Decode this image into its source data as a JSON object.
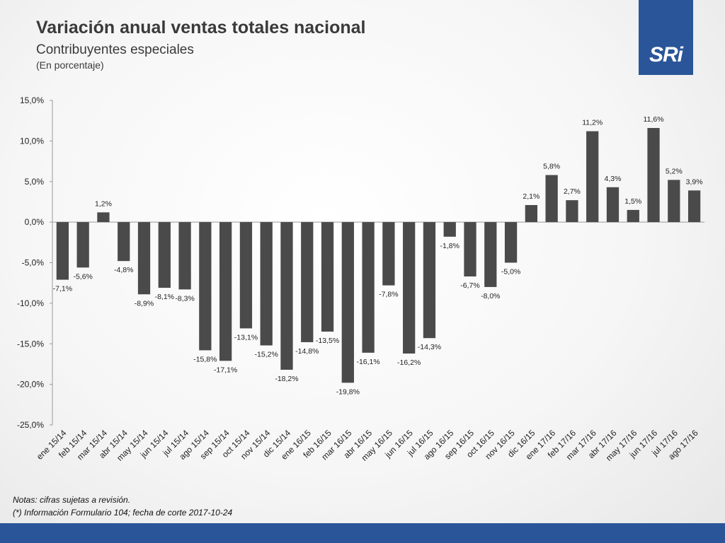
{
  "header": {
    "title": "Variación anual ventas totales nacional",
    "subtitle": "Contribuyentes especiales",
    "unit": "(En porcentaje)"
  },
  "logo": {
    "text": "SRi",
    "color": "#2a5599"
  },
  "notes": {
    "line1": "Notas: cifras sujetas a revisión.",
    "line2": "(*) Información Formulario 104; fecha de corte 2017-10-24"
  },
  "colors": {
    "bar": "#4a4a4a",
    "axis": "#9a9a9a",
    "accent": "#2a5599"
  },
  "chart_data": {
    "type": "bar",
    "title": "Variación anual ventas totales nacional",
    "ylim": [
      -25,
      15
    ],
    "ytick_step": 5,
    "ytick_labels": [
      "15,0%",
      "10,0%",
      "5,0%",
      "0,0%",
      "-5,0%",
      "-10,0%",
      "-15,0%",
      "-20,0%",
      "-25,0%"
    ],
    "grid": false,
    "legend": "none",
    "categories": [
      "ene 15/14",
      "feb 15/14",
      "mar 15/14",
      "abr 15/14",
      "may 15/14",
      "jun 15/14",
      "jul 15/14",
      "ago 15/14",
      "sep 15/14",
      "oct 15/14",
      "nov 15/14",
      "dic 15/14",
      "ene 16/15",
      "feb 16/15",
      "mar 16/15",
      "abr 16/15",
      "may 16/15",
      "jun 16/15",
      "jul 16/15",
      "ago 16/15",
      "sep 16/15",
      "oct 16/15",
      "nov 16/15",
      "dic 16/15",
      "ene 17/16",
      "feb 17/16",
      "mar 17/16",
      "abr 17/16",
      "may 17/16",
      "jun 17/16",
      "jul 17/16",
      "ago 17/16"
    ],
    "values": [
      -7.1,
      -5.6,
      1.2,
      -4.8,
      -8.9,
      -8.1,
      -8.3,
      -15.8,
      -17.1,
      -13.1,
      -15.2,
      -18.2,
      -14.8,
      -13.5,
      -19.8,
      -16.1,
      -7.8,
      -16.2,
      -14.3,
      -1.8,
      -6.7,
      -8.0,
      -5.0,
      2.1,
      5.8,
      2.7,
      11.2,
      4.3,
      1.5,
      11.6,
      5.2,
      3.9
    ],
    "value_labels": [
      "-7,1%",
      "-5,6%",
      "1,2%",
      "-4,8%",
      "-8,9%",
      "-8,1%",
      "-8,3%",
      "-15,8%",
      "-17,1%",
      "-13,1%",
      "-15,2%",
      "-18,2%",
      "-14,8%",
      "-13,5%",
      "-19,8%",
      "-16,1%",
      "-7,8%",
      "-16,2%",
      "-14,3%",
      "-1,8%",
      "-6,7%",
      "-8,0%",
      "-5,0%",
      "2,1%",
      "5,8%",
      "2,7%",
      "11,2%",
      "4,3%",
      "1,5%",
      "11,6%",
      "5,2%",
      "3,9%"
    ]
  }
}
